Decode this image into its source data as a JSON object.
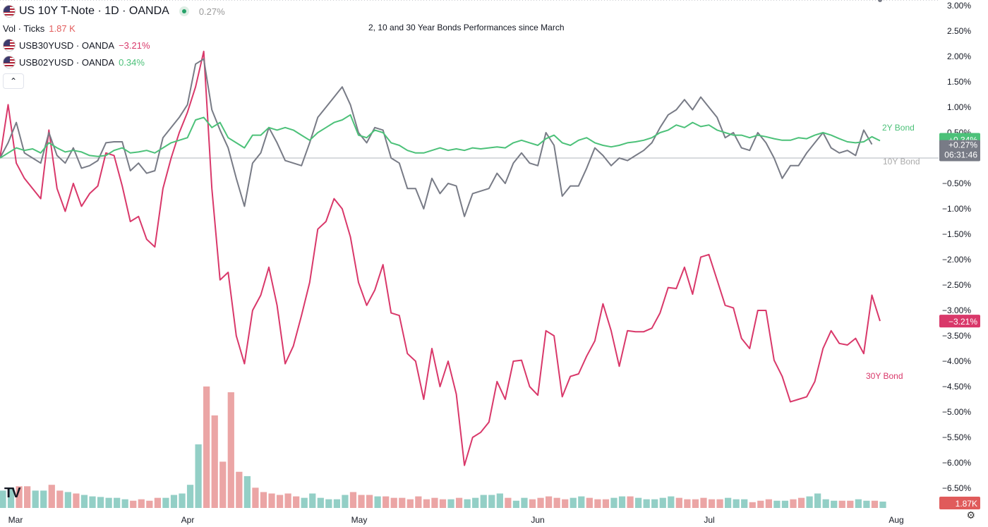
{
  "header": {
    "title": "US 10Y T-Note · 1D · OANDA",
    "change": "0.27%",
    "vol_label": "Vol · Ticks",
    "vol_value": "1.87 K",
    "collapse_glyph": "⌃"
  },
  "compare": [
    {
      "symbol": "USB30YUSD · OANDA",
      "change": "−3.21%",
      "color": "#d9386a"
    },
    {
      "symbol": "USB02YUSD · OANDA",
      "change": "0.34%",
      "color": "#4cc179"
    }
  ],
  "annotations": {
    "chart_note": "2, 10 and 30 Year Bonds Performances since March",
    "label_2y": "2Y Bond",
    "label_10y": "10Y Bond",
    "label_30y": "30Y Bond"
  },
  "price_tags": {
    "two_year": "+0.34%",
    "ten_year": "+0.27%",
    "countdown": "06:31:46",
    "thirty_year": "−3.21%",
    "volume": "1.87K"
  },
  "logo_text": "TV",
  "settings_icon": "⚙",
  "chart_data": {
    "type": "line",
    "x_labels": [
      "Mar",
      "Apr",
      "May",
      "Jun",
      "Jul",
      "Aug"
    ],
    "y_ticks": [
      "3.00%",
      "2.50%",
      "2.00%",
      "1.50%",
      "1.00%",
      "0.50%",
      "0.00%",
      "−0.50%",
      "−1.00%",
      "−1.50%",
      "−2.00%",
      "−2.50%",
      "−3.00%",
      "−3.50%",
      "−4.00%",
      "−4.50%",
      "−5.00%",
      "−5.50%",
      "−6.00%",
      "−6.50%"
    ],
    "ylim": [
      -6.9,
      3.0
    ],
    "baseline": 0.0,
    "colors": {
      "two_year": "#4cc179",
      "ten_year": "#787b86",
      "thirty_year": "#d9386a",
      "vol_up": "#93cfc6",
      "vol_down": "#eba5a5"
    },
    "series": [
      {
        "name": "30Y Bond",
        "key": "thirty_year",
        "values": [
          0.0,
          1.05,
          -0.1,
          -0.4,
          -0.6,
          -0.8,
          0.55,
          -0.6,
          -1.05,
          -0.5,
          -0.95,
          -0.7,
          -0.55,
          0.1,
          0.05,
          -0.55,
          -1.25,
          -1.15,
          -1.6,
          -1.75,
          -0.6,
          0.0,
          0.5,
          0.9,
          1.4,
          2.1,
          -0.6,
          -2.4,
          -2.25,
          -3.5,
          -4.05,
          -3.0,
          -2.7,
          -2.15,
          -2.9,
          -4.05,
          -3.7,
          -3.1,
          -2.45,
          -1.4,
          -1.25,
          -0.8,
          -1.0,
          -1.55,
          -2.45,
          -2.9,
          -2.6,
          -2.1,
          -3.05,
          -3.1,
          -3.85,
          -4.0,
          -4.75,
          -3.75,
          -4.5,
          -4.0,
          -4.65,
          -6.05,
          -5.5,
          -5.4,
          -5.2,
          -4.4,
          -4.75,
          -4.0,
          -3.98,
          -4.5,
          -4.67,
          -3.4,
          -3.5,
          -4.7,
          -4.3,
          -4.25,
          -3.9,
          -3.6,
          -2.87,
          -3.4,
          -4.1,
          -3.4,
          -3.42,
          -3.42,
          -3.35,
          -3.05,
          -2.55,
          -2.57,
          -2.15,
          -2.68,
          -1.95,
          -1.9,
          -2.4,
          -2.9,
          -2.95,
          -3.55,
          -3.75,
          -3.0,
          -3.0,
          -3.98,
          -4.3,
          -4.8,
          -4.75,
          -4.7,
          -4.4,
          -3.75,
          -3.4,
          -3.65,
          -3.68,
          -3.55,
          -3.85,
          -2.7,
          -3.21
        ]
      },
      {
        "name": "10Y Bond",
        "key": "ten_year",
        "values": [
          0.0,
          0.3,
          0.7,
          0.1,
          0.0,
          -0.1,
          0.5,
          0.05,
          -0.1,
          0.2,
          -0.2,
          -0.15,
          -0.05,
          0.3,
          0.32,
          0.32,
          -0.25,
          -0.1,
          -0.3,
          -0.25,
          0.4,
          0.6,
          0.8,
          1.05,
          1.85,
          1.95,
          0.95,
          0.55,
          0.2,
          -0.4,
          -0.95,
          -0.1,
          0.1,
          0.6,
          0.3,
          -0.05,
          -0.1,
          -0.15,
          0.3,
          0.8,
          1.0,
          1.2,
          1.4,
          1.05,
          0.5,
          0.3,
          0.6,
          0.55,
          0.0,
          -0.1,
          -0.6,
          -0.6,
          -1.0,
          -0.4,
          -0.7,
          -0.5,
          -0.55,
          -1.15,
          -0.7,
          -0.65,
          -0.6,
          -0.3,
          -0.5,
          -0.1,
          0.1,
          -0.1,
          -0.15,
          0.5,
          0.25,
          -0.75,
          -0.55,
          -0.55,
          -0.2,
          0.2,
          0.05,
          -0.15,
          0.0,
          -0.05,
          0.05,
          0.15,
          0.3,
          0.6,
          0.85,
          0.95,
          1.15,
          0.95,
          1.2,
          1.0,
          0.8,
          0.4,
          0.5,
          0.2,
          0.15,
          0.5,
          0.3,
          0.0,
          -0.4,
          -0.15,
          -0.15,
          0.1,
          0.3,
          0.5,
          0.2,
          0.1,
          0.15,
          0.05,
          0.55,
          0.27
        ]
      },
      {
        "name": "2Y Bond",
        "key": "two_year",
        "values": [
          0.0,
          0.1,
          0.2,
          0.15,
          0.18,
          0.1,
          0.3,
          0.2,
          0.12,
          0.15,
          0.12,
          0.05,
          0.03,
          0.05,
          0.15,
          0.2,
          0.1,
          0.12,
          0.15,
          0.1,
          0.2,
          0.3,
          0.35,
          0.4,
          0.75,
          0.8,
          0.6,
          0.7,
          0.4,
          0.3,
          0.2,
          0.45,
          0.45,
          0.6,
          0.55,
          0.6,
          0.55,
          0.45,
          0.35,
          0.5,
          0.6,
          0.7,
          0.75,
          0.85,
          0.45,
          0.4,
          0.55,
          0.5,
          0.3,
          0.25,
          0.15,
          0.1,
          0.1,
          0.15,
          0.2,
          0.15,
          0.18,
          0.15,
          0.2,
          0.18,
          0.2,
          0.22,
          0.2,
          0.3,
          0.35,
          0.3,
          0.25,
          0.38,
          0.45,
          0.3,
          0.25,
          0.35,
          0.4,
          0.3,
          0.25,
          0.22,
          0.25,
          0.3,
          0.32,
          0.35,
          0.4,
          0.5,
          0.55,
          0.65,
          0.6,
          0.7,
          0.62,
          0.65,
          0.55,
          0.5,
          0.45,
          0.45,
          0.4,
          0.45,
          0.42,
          0.38,
          0.35,
          0.35,
          0.4,
          0.38,
          0.45,
          0.5,
          0.45,
          0.38,
          0.32,
          0.3,
          0.32,
          0.42,
          0.34
        ]
      }
    ],
    "volume": {
      "values": [
        0.6,
        0.7,
        0.75,
        0.75,
        0.6,
        0.6,
        0.8,
        0.6,
        0.55,
        0.5,
        0.45,
        0.4,
        0.38,
        0.35,
        0.35,
        0.3,
        0.25,
        0.3,
        0.25,
        0.35,
        0.35,
        0.45,
        0.5,
        0.8,
        2.2,
        4.2,
        3.2,
        1.6,
        4.0,
        1.25,
        1.1,
        0.7,
        0.55,
        0.5,
        0.45,
        0.5,
        0.4,
        0.35,
        0.5,
        0.35,
        0.3,
        0.3,
        0.45,
        0.55,
        0.45,
        0.45,
        0.4,
        0.4,
        0.35,
        0.35,
        0.3,
        0.4,
        0.3,
        0.35,
        0.3,
        0.3,
        0.35,
        0.3,
        0.35,
        0.45,
        0.45,
        0.5,
        0.35,
        0.25,
        0.35,
        0.3,
        0.35,
        0.4,
        0.35,
        0.3,
        0.35,
        0.4,
        0.35,
        0.3,
        0.3,
        0.35,
        0.4,
        0.4,
        0.35,
        0.3,
        0.3,
        0.35,
        0.4,
        0.35,
        0.3,
        0.3,
        0.35,
        0.3,
        0.3,
        0.35,
        0.3,
        0.3,
        0.2,
        0.25,
        0.3,
        0.25,
        0.25,
        0.3,
        0.35,
        0.4,
        0.5,
        0.3,
        0.25,
        0.25,
        0.25,
        0.3,
        0.25,
        0.25,
        0.22
      ],
      "direction": [
        "u",
        "u",
        "d",
        "d",
        "u",
        "u",
        "d",
        "d",
        "u",
        "d",
        "u",
        "u",
        "u",
        "u",
        "u",
        "u",
        "d",
        "d",
        "d",
        "d",
        "u",
        "u",
        "u",
        "u",
        "u",
        "d",
        "d",
        "d",
        "d",
        "d",
        "u",
        "d",
        "d",
        "d",
        "d",
        "d",
        "d",
        "u",
        "u",
        "u",
        "u",
        "u",
        "u",
        "d",
        "d",
        "d",
        "u",
        "d",
        "d",
        "d",
        "d",
        "d",
        "d",
        "d",
        "d",
        "u",
        "d",
        "u",
        "u",
        "u",
        "u",
        "u",
        "d",
        "u",
        "u",
        "d",
        "d",
        "d",
        "d",
        "d",
        "u",
        "u",
        "d",
        "d",
        "d",
        "u",
        "u",
        "d",
        "u",
        "u",
        "u",
        "u",
        "u",
        "d",
        "d",
        "d",
        "d",
        "d",
        "d",
        "u",
        "u",
        "u",
        "d",
        "d",
        "d",
        "u",
        "u",
        "d",
        "d",
        "u",
        "u",
        "u",
        "u",
        "d",
        "d",
        "u",
        "u",
        "d",
        "u"
      ]
    }
  }
}
